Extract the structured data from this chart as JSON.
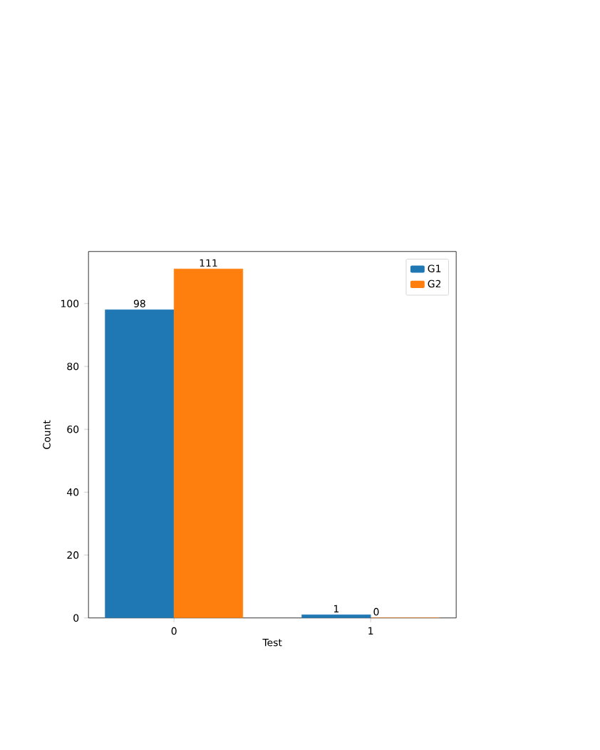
{
  "chart_data": {
    "type": "bar",
    "xlabel": "Test",
    "ylabel": "Count",
    "categories": [
      "0",
      "1"
    ],
    "series": [
      {
        "name": "G1",
        "color": "#1f77b4",
        "values": [
          98,
          1
        ]
      },
      {
        "name": "G2",
        "color": "#ff7f0e",
        "values": [
          111,
          0
        ]
      }
    ],
    "ylim": [
      0,
      116.55
    ],
    "yticks": [
      0,
      20,
      40,
      60,
      80,
      100
    ],
    "data_labels": true,
    "legend": "top right",
    "grid": false
  }
}
